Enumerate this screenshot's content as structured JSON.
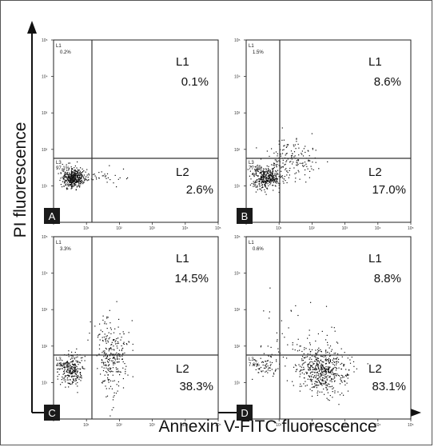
{
  "colors": {
    "axis": "#111111",
    "gate": "#333333",
    "dot": "#111111",
    "panel_label_bg": "#1a1a1a"
  },
  "chart_data": {
    "type": "scatter",
    "xlabel": "Annexin V-FITC  fluorescence",
    "ylabel": "PI fluorescence",
    "scale": "log",
    "tick_labels": [
      "10⁰",
      "10¹",
      "10²",
      "10³",
      "10⁴",
      "10⁵"
    ],
    "panels": [
      {
        "label": "A",
        "quadrants": {
          "L1": "L1",
          "L1_small": "0.2%",
          "L1_large": "0.1%",
          "L2": "L2",
          "L2_large": "2.6%",
          "L3": "L3",
          "L3_small": "97.1%"
        }
      },
      {
        "label": "B",
        "quadrants": {
          "L1": "L1",
          "L1_small": "1.5%",
          "L1_large": "8.6%",
          "L2": "L2",
          "L2_large": "17.0%",
          "L3": "L3",
          "L3_small": "77.9%"
        }
      },
      {
        "label": "C",
        "quadrants": {
          "L1": "L1",
          "L1_small": "3.3%",
          "L1_large": "14.5%",
          "L2": "L2",
          "L2_large": "38.3%",
          "L3": "L3",
          "L3_small": "43.9%"
        }
      },
      {
        "label": "D",
        "quadrants": {
          "L1": "L1",
          "L1_small": "0.6%",
          "L1_large": "8.8%",
          "L2": "L2",
          "L2_large": "83.1%",
          "L3": "L3",
          "L3_small": "7.6%"
        }
      }
    ]
  }
}
